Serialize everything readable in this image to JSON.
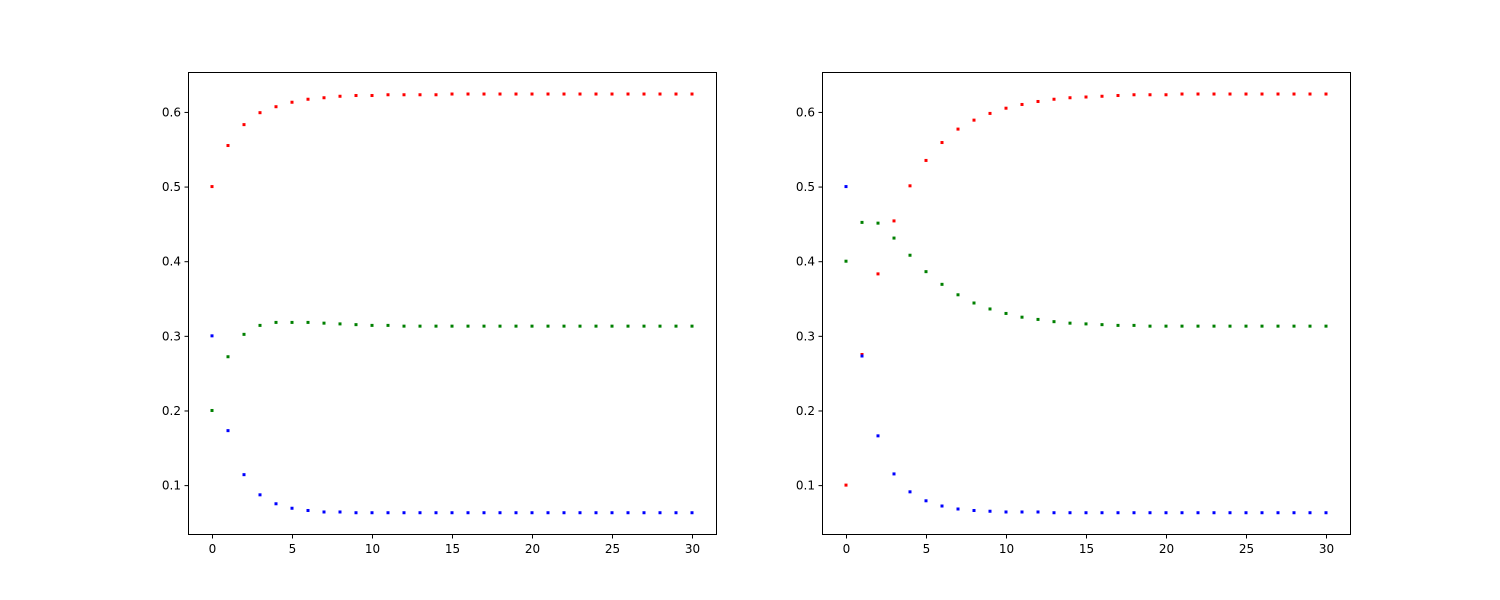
{
  "chart_data": [
    {
      "type": "scatter",
      "title": "",
      "xlabel": "",
      "ylabel": "",
      "xlim": [
        -1.5,
        31.5
      ],
      "ylim": [
        0.0345,
        0.6535
      ],
      "xticks": [
        0,
        5,
        10,
        15,
        20,
        25,
        30
      ],
      "yticks": [
        0.1,
        0.2,
        0.3,
        0.4,
        0.5,
        0.6
      ],
      "grid": false,
      "series": [
        {
          "color": "#ff0000",
          "x": [
            0,
            1,
            2,
            3,
            4,
            5,
            6,
            7,
            8,
            9,
            10,
            11,
            12,
            13,
            14,
            15,
            16,
            17,
            18,
            19,
            20,
            21,
            22,
            23,
            24,
            25,
            26,
            27,
            28,
            29,
            30
          ],
          "y": [
            0.5,
            0.555,
            0.583,
            0.599,
            0.607,
            0.613,
            0.617,
            0.619,
            0.621,
            0.622,
            0.622,
            0.623,
            0.623,
            0.623,
            0.623,
            0.624,
            0.624,
            0.624,
            0.624,
            0.624,
            0.624,
            0.624,
            0.624,
            0.624,
            0.624,
            0.624,
            0.624,
            0.624,
            0.624,
            0.624,
            0.624
          ]
        },
        {
          "color": "#008000",
          "x": [
            0,
            1,
            2,
            3,
            4,
            5,
            6,
            7,
            8,
            9,
            10,
            11,
            12,
            13,
            14,
            15,
            16,
            17,
            18,
            19,
            20,
            21,
            22,
            23,
            24,
            25,
            26,
            27,
            28,
            29,
            30
          ],
          "y": [
            0.2,
            0.272,
            0.302,
            0.314,
            0.318,
            0.318,
            0.318,
            0.317,
            0.316,
            0.315,
            0.314,
            0.314,
            0.313,
            0.313,
            0.313,
            0.313,
            0.313,
            0.313,
            0.313,
            0.313,
            0.313,
            0.313,
            0.313,
            0.313,
            0.313,
            0.313,
            0.313,
            0.313,
            0.313,
            0.313,
            0.313
          ]
        },
        {
          "color": "#0000ff",
          "x": [
            0,
            1,
            2,
            3,
            4,
            5,
            6,
            7,
            8,
            9,
            10,
            11,
            12,
            13,
            14,
            15,
            16,
            17,
            18,
            19,
            20,
            21,
            22,
            23,
            24,
            25,
            26,
            27,
            28,
            29,
            30
          ],
          "y": [
            0.3,
            0.173,
            0.114,
            0.087,
            0.075,
            0.069,
            0.066,
            0.064,
            0.064,
            0.063,
            0.063,
            0.063,
            0.063,
            0.063,
            0.063,
            0.063,
            0.063,
            0.063,
            0.063,
            0.063,
            0.063,
            0.063,
            0.063,
            0.063,
            0.063,
            0.063,
            0.063,
            0.063,
            0.063,
            0.063,
            0.063
          ]
        }
      ]
    },
    {
      "type": "scatter",
      "title": "",
      "xlabel": "",
      "ylabel": "",
      "xlim": [
        -1.5,
        31.5
      ],
      "ylim": [
        0.0345,
        0.6535
      ],
      "xticks": [
        0,
        5,
        10,
        15,
        20,
        25,
        30
      ],
      "yticks": [
        0.1,
        0.2,
        0.3,
        0.4,
        0.5,
        0.6
      ],
      "grid": false,
      "series": [
        {
          "color": "#ff0000",
          "x": [
            0,
            1,
            2,
            3,
            4,
            5,
            6,
            7,
            8,
            9,
            10,
            11,
            12,
            13,
            14,
            15,
            16,
            17,
            18,
            19,
            20,
            21,
            22,
            23,
            24,
            25,
            26,
            27,
            28,
            29,
            30
          ],
          "y": [
            0.1,
            0.275,
            0.383,
            0.454,
            0.501,
            0.535,
            0.559,
            0.577,
            0.589,
            0.598,
            0.605,
            0.61,
            0.614,
            0.617,
            0.619,
            0.62,
            0.621,
            0.622,
            0.623,
            0.623,
            0.623,
            0.624,
            0.624,
            0.624,
            0.624,
            0.624,
            0.624,
            0.624,
            0.624,
            0.624,
            0.624
          ]
        },
        {
          "color": "#008000",
          "x": [
            0,
            1,
            2,
            3,
            4,
            5,
            6,
            7,
            8,
            9,
            10,
            11,
            12,
            13,
            14,
            15,
            16,
            17,
            18,
            19,
            20,
            21,
            22,
            23,
            24,
            25,
            26,
            27,
            28,
            29,
            30
          ],
          "y": [
            0.4,
            0.452,
            0.451,
            0.431,
            0.408,
            0.386,
            0.369,
            0.355,
            0.344,
            0.336,
            0.33,
            0.325,
            0.322,
            0.319,
            0.317,
            0.316,
            0.315,
            0.314,
            0.314,
            0.313,
            0.313,
            0.313,
            0.313,
            0.313,
            0.313,
            0.313,
            0.313,
            0.313,
            0.313,
            0.313,
            0.313
          ]
        },
        {
          "color": "#0000ff",
          "x": [
            0,
            1,
            2,
            3,
            4,
            5,
            6,
            7,
            8,
            9,
            10,
            11,
            12,
            13,
            14,
            15,
            16,
            17,
            18,
            19,
            20,
            21,
            22,
            23,
            24,
            25,
            26,
            27,
            28,
            29,
            30
          ],
          "y": [
            0.5,
            0.273,
            0.166,
            0.115,
            0.091,
            0.079,
            0.072,
            0.068,
            0.066,
            0.065,
            0.064,
            0.064,
            0.064,
            0.063,
            0.063,
            0.063,
            0.063,
            0.063,
            0.063,
            0.063,
            0.063,
            0.063,
            0.063,
            0.063,
            0.063,
            0.063,
            0.063,
            0.063,
            0.063,
            0.063,
            0.063
          ]
        }
      ]
    }
  ]
}
